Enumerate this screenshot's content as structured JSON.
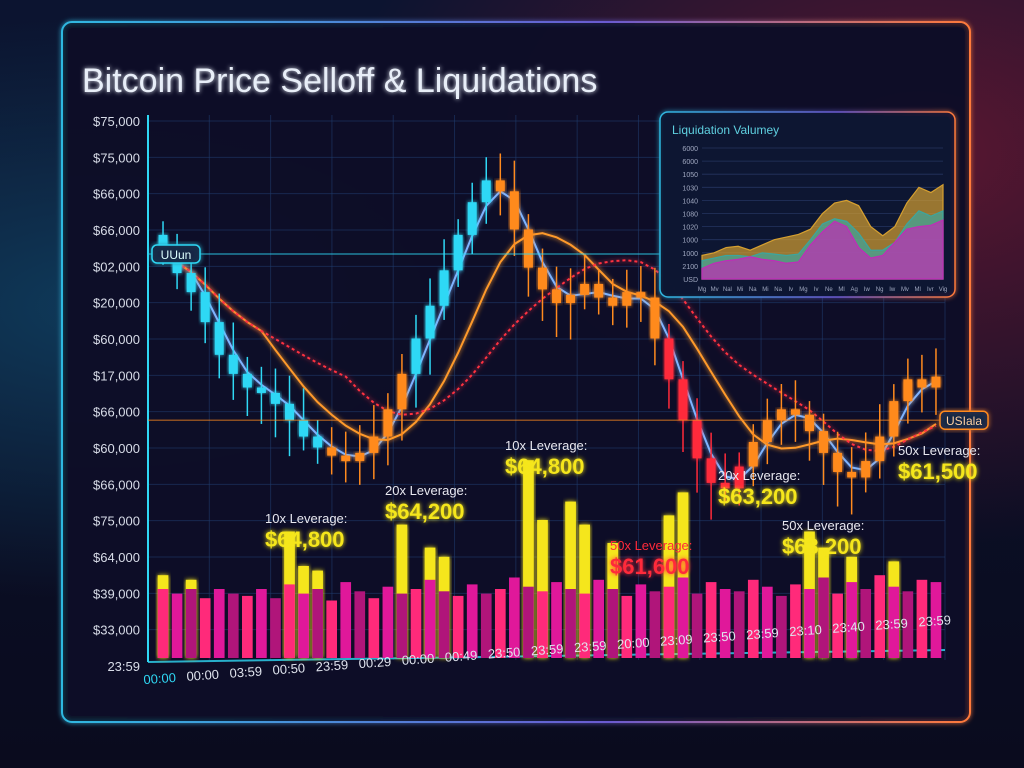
{
  "title": "Bitcoin Price Selloff & Liquidations",
  "colors": {
    "cyan": "#2fd8f5",
    "orange": "#ff8a1e",
    "red": "#ff2a3a",
    "yellow": "#f5e61a",
    "magenta": "#e0189a",
    "panel_border": "#2fb8e0"
  },
  "chart_data": [
    {
      "type": "candlestick",
      "title": "Bitcoin Price Selloff & Liquidations",
      "ylim": [
        56000,
        76000
      ],
      "y_tick_labels": [
        "$75,000",
        "$75,000",
        "$66,000",
        "$66,000",
        "$02,000",
        "$20,000",
        "$60,000",
        "$17,000",
        "$66,000",
        "$60,000",
        "$66,000",
        "$75,000",
        "$64,000",
        "$39,000",
        "$33,000",
        "23:59"
      ],
      "x_tick_labels": [
        "00:00",
        "00:00",
        "03:59",
        "00:50",
        "23:59",
        "00:29",
        "00:00",
        "00:49",
        "23:50",
        "23:59",
        "23:59",
        "20:00",
        "23:09",
        "23:50",
        "23:59",
        "23:10",
        "23:40",
        "23:59",
        "23:59"
      ],
      "close": [
        71000,
        70200,
        69500,
        68400,
        67200,
        66500,
        66000,
        65800,
        65400,
        64800,
        64200,
        63800,
        63500,
        63300,
        63600,
        64200,
        65200,
        66500,
        67800,
        69000,
        70300,
        71600,
        72800,
        73600,
        73200,
        71800,
        70400,
        69600,
        69100,
        69400,
        69800,
        69300,
        69000,
        69500,
        69300,
        67800,
        66300,
        64800,
        63400,
        62500,
        62300,
        63100,
        64000,
        64800,
        65200,
        65000,
        64400,
        63600,
        62900,
        62700,
        63300,
        64200,
        65500,
        66300,
        66000,
        66400
      ],
      "color_segments": [
        {
          "from": 0,
          "to": 11,
          "color": "cyan"
        },
        {
          "from": 12,
          "to": 17,
          "color": "orange"
        },
        {
          "from": 18,
          "to": 23,
          "color": "cyan"
        },
        {
          "from": 24,
          "to": 35,
          "color": "orange"
        },
        {
          "from": 36,
          "to": 41,
          "color": "red"
        },
        {
          "from": 42,
          "to": 55,
          "color": "orange"
        }
      ],
      "moving_averages": [
        {
          "period": 3,
          "color": "#7fb4ff"
        },
        {
          "period": 8,
          "color": "#ff9a2a"
        },
        {
          "period": 14,
          "color": "#ff3040",
          "dashed": true
        }
      ],
      "reference_lines": [
        {
          "label": "UUun",
          "price": 70900,
          "side": "left",
          "color": "#2fd8f5"
        },
        {
          "label": "USIala",
          "price": 64800,
          "side": "right",
          "color": "#ff8a1e"
        }
      ],
      "liquidation_volume": {
        "base": [
          30,
          28,
          30,
          26,
          30,
          28,
          27,
          30,
          26,
          32,
          28,
          30,
          25,
          33,
          29,
          26,
          31,
          28,
          30,
          34,
          29,
          27,
          32,
          28,
          30,
          35,
          31,
          29,
          33,
          30,
          28,
          34,
          30,
          27,
          32,
          29,
          31,
          35,
          28,
          33,
          30,
          29,
          34,
          31,
          27,
          32,
          30,
          35,
          28,
          33,
          30,
          36,
          31,
          29,
          34,
          33
        ],
        "spike": [
          36,
          0,
          34,
          0,
          0,
          0,
          0,
          0,
          0,
          55,
          40,
          38,
          0,
          0,
          0,
          0,
          0,
          58,
          0,
          48,
          44,
          0,
          0,
          0,
          0,
          0,
          86,
          60,
          0,
          68,
          58,
          0,
          50,
          0,
          0,
          0,
          62,
          72,
          0,
          0,
          0,
          0,
          0,
          0,
          0,
          0,
          55,
          48,
          0,
          44,
          0,
          0,
          42,
          0,
          0,
          0
        ]
      },
      "annotations": [
        {
          "leverage": "10x Leverage:",
          "price": "$64,800",
          "color": "yellow"
        },
        {
          "leverage": "20x Leverage:",
          "price": "$64,200",
          "color": "yellow"
        },
        {
          "leverage": "10x Leverage:",
          "price": "$64,800",
          "color": "yellow"
        },
        {
          "leverage": "50x Leverage:",
          "price": "$61,600",
          "color": "red"
        },
        {
          "leverage": "20x Leverage:",
          "price": "$63,200",
          "color": "yellow"
        },
        {
          "leverage": "50x Leverage:",
          "price": "$63,200",
          "color": "yellow"
        },
        {
          "leverage": "50x Leverage:",
          "price": "$61,500",
          "color": "yellow"
        }
      ]
    },
    {
      "type": "area",
      "title": "Liquidation Valumey",
      "y_tick_labels": [
        "6000",
        "6000",
        "1050",
        "1030",
        "1040",
        "1080",
        "1020",
        "1000",
        "1000",
        "2100",
        "USD"
      ],
      "x_tick_labels": [
        "Mg",
        "Mv",
        "Nal",
        "Mi",
        "Na",
        "Mi",
        "Na",
        "Iv",
        "Mg",
        "Iv",
        "Ne",
        "Ml",
        "Ag",
        "Iw",
        "Ng",
        "Iw",
        "Mv",
        "Ml",
        "Ivr",
        "Vig"
      ],
      "ylim": [
        0,
        100
      ],
      "series": [
        {
          "color": "#d6a030",
          "values": [
            18,
            20,
            24,
            25,
            22,
            26,
            30,
            32,
            34,
            38,
            50,
            58,
            60,
            56,
            40,
            33,
            40,
            58,
            70,
            66,
            72
          ]
        },
        {
          "color": "#3aa6a0",
          "values": [
            14,
            16,
            18,
            18,
            17,
            20,
            19,
            18,
            19,
            30,
            42,
            46,
            44,
            35,
            22,
            22,
            28,
            42,
            52,
            48,
            52
          ]
        },
        {
          "color": "#c02cb8",
          "values": [
            8,
            12,
            14,
            15,
            17,
            15,
            14,
            12,
            13,
            26,
            36,
            44,
            40,
            24,
            16,
            18,
            28,
            38,
            40,
            41,
            45
          ]
        }
      ]
    }
  ]
}
